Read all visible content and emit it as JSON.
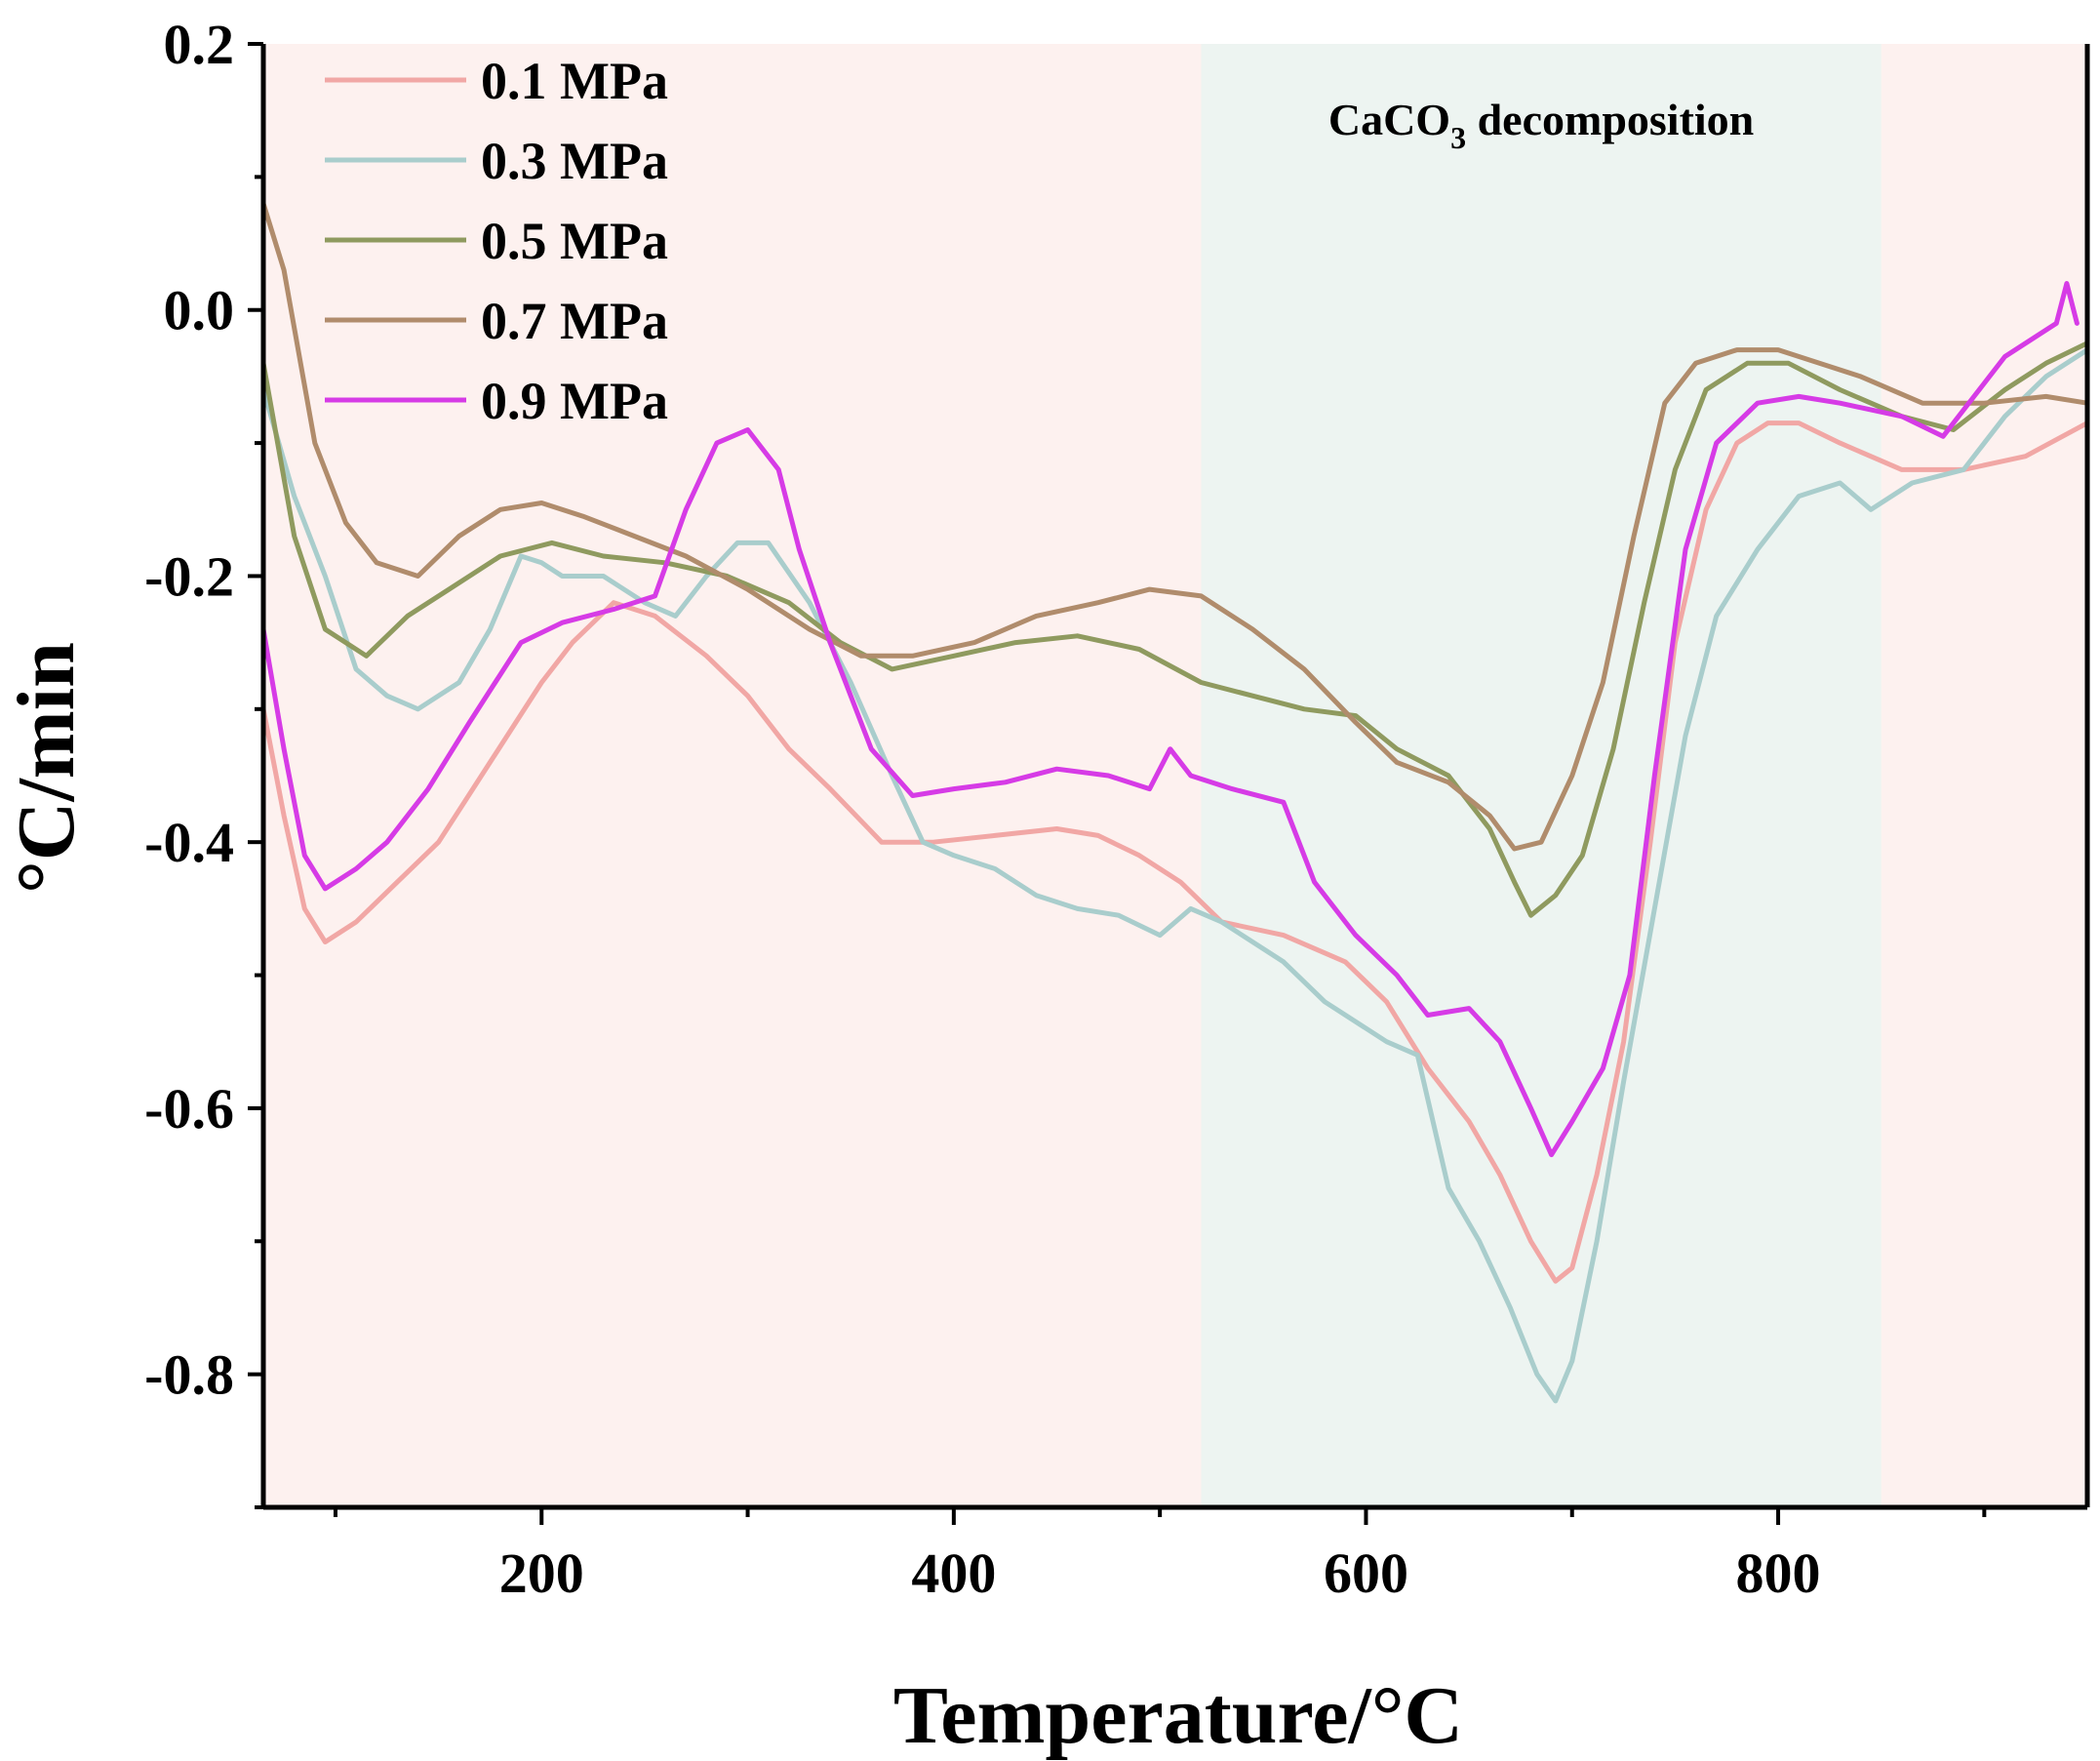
{
  "chart_data": {
    "type": "line",
    "xlabel": "Temperature/°C",
    "ylabel": "°C/min",
    "xlim": [
      65,
      950
    ],
    "ylim": [
      -0.9,
      0.2
    ],
    "xticks": [
      200,
      400,
      600,
      800
    ],
    "yticks": [
      0.2,
      0.0,
      -0.2,
      -0.4,
      -0.6,
      -0.8
    ],
    "ytick_labels": [
      "0.2",
      "0.0",
      "-0.2",
      "-0.4",
      "-0.6",
      "-0.8"
    ],
    "xtick_labels": [
      "200",
      "400",
      "600",
      "800"
    ],
    "legend_position": "top-left",
    "background_color": "#fdf1ef",
    "highlight_region": {
      "x_from": 520,
      "x_to": 850,
      "color": "#edf4f1",
      "label_main": "CaCO",
      "label_sub": "3",
      "label_tail": " decomposition"
    },
    "series": [
      {
        "name": "0.1 MPa",
        "color": "#f1a7a5",
        "points": [
          [
            65,
            -0.3
          ],
          [
            75,
            -0.38
          ],
          [
            85,
            -0.45
          ],
          [
            95,
            -0.475
          ],
          [
            110,
            -0.46
          ],
          [
            130,
            -0.43
          ],
          [
            150,
            -0.4
          ],
          [
            175,
            -0.34
          ],
          [
            200,
            -0.28
          ],
          [
            215,
            -0.25
          ],
          [
            235,
            -0.22
          ],
          [
            255,
            -0.23
          ],
          [
            280,
            -0.26
          ],
          [
            300,
            -0.29
          ],
          [
            320,
            -0.33
          ],
          [
            340,
            -0.36
          ],
          [
            365,
            -0.4
          ],
          [
            390,
            -0.4
          ],
          [
            420,
            -0.395
          ],
          [
            450,
            -0.39
          ],
          [
            470,
            -0.395
          ],
          [
            490,
            -0.41
          ],
          [
            510,
            -0.43
          ],
          [
            530,
            -0.46
          ],
          [
            560,
            -0.47
          ],
          [
            590,
            -0.49
          ],
          [
            610,
            -0.52
          ],
          [
            630,
            -0.57
          ],
          [
            650,
            -0.61
          ],
          [
            665,
            -0.65
          ],
          [
            680,
            -0.7
          ],
          [
            692,
            -0.73
          ],
          [
            700,
            -0.72
          ],
          [
            712,
            -0.65
          ],
          [
            725,
            -0.55
          ],
          [
            738,
            -0.4
          ],
          [
            750,
            -0.25
          ],
          [
            765,
            -0.15
          ],
          [
            780,
            -0.1
          ],
          [
            795,
            -0.085
          ],
          [
            810,
            -0.085
          ],
          [
            830,
            -0.1
          ],
          [
            860,
            -0.12
          ],
          [
            890,
            -0.12
          ],
          [
            920,
            -0.11
          ],
          [
            950,
            -0.085
          ]
        ]
      },
      {
        "name": "0.3 MPa",
        "color": "#a9cdcc",
        "points": [
          [
            65,
            -0.06
          ],
          [
            80,
            -0.14
          ],
          [
            95,
            -0.2
          ],
          [
            110,
            -0.27
          ],
          [
            125,
            -0.29
          ],
          [
            140,
            -0.3
          ],
          [
            160,
            -0.28
          ],
          [
            175,
            -0.24
          ],
          [
            190,
            -0.185
          ],
          [
            200,
            -0.19
          ],
          [
            210,
            -0.2
          ],
          [
            230,
            -0.2
          ],
          [
            250,
            -0.22
          ],
          [
            265,
            -0.23
          ],
          [
            280,
            -0.2
          ],
          [
            295,
            -0.175
          ],
          [
            310,
            -0.175
          ],
          [
            330,
            -0.22
          ],
          [
            350,
            -0.28
          ],
          [
            370,
            -0.35
          ],
          [
            385,
            -0.4
          ],
          [
            400,
            -0.41
          ],
          [
            420,
            -0.42
          ],
          [
            440,
            -0.44
          ],
          [
            460,
            -0.45
          ],
          [
            480,
            -0.455
          ],
          [
            500,
            -0.47
          ],
          [
            515,
            -0.45
          ],
          [
            530,
            -0.46
          ],
          [
            560,
            -0.49
          ],
          [
            580,
            -0.52
          ],
          [
            610,
            -0.55
          ],
          [
            625,
            -0.56
          ],
          [
            640,
            -0.66
          ],
          [
            655,
            -0.7
          ],
          [
            670,
            -0.75
          ],
          [
            683,
            -0.8
          ],
          [
            692,
            -0.82
          ],
          [
            700,
            -0.79
          ],
          [
            712,
            -0.7
          ],
          [
            725,
            -0.58
          ],
          [
            740,
            -0.45
          ],
          [
            755,
            -0.32
          ],
          [
            770,
            -0.23
          ],
          [
            790,
            -0.18
          ],
          [
            810,
            -0.14
          ],
          [
            830,
            -0.13
          ],
          [
            845,
            -0.15
          ],
          [
            865,
            -0.13
          ],
          [
            890,
            -0.12
          ],
          [
            910,
            -0.08
          ],
          [
            930,
            -0.05
          ],
          [
            950,
            -0.03
          ]
        ]
      },
      {
        "name": "0.5 MPa",
        "color": "#8f9a5f",
        "points": [
          [
            65,
            -0.04
          ],
          [
            80,
            -0.17
          ],
          [
            95,
            -0.24
          ],
          [
            115,
            -0.26
          ],
          [
            135,
            -0.23
          ],
          [
            155,
            -0.21
          ],
          [
            180,
            -0.185
          ],
          [
            205,
            -0.175
          ],
          [
            230,
            -0.185
          ],
          [
            260,
            -0.19
          ],
          [
            290,
            -0.2
          ],
          [
            320,
            -0.22
          ],
          [
            345,
            -0.25
          ],
          [
            370,
            -0.27
          ],
          [
            400,
            -0.26
          ],
          [
            430,
            -0.25
          ],
          [
            460,
            -0.245
          ],
          [
            490,
            -0.255
          ],
          [
            520,
            -0.28
          ],
          [
            545,
            -0.29
          ],
          [
            570,
            -0.3
          ],
          [
            595,
            -0.305
          ],
          [
            615,
            -0.33
          ],
          [
            640,
            -0.35
          ],
          [
            660,
            -0.39
          ],
          [
            672,
            -0.43
          ],
          [
            680,
            -0.455
          ],
          [
            692,
            -0.44
          ],
          [
            705,
            -0.41
          ],
          [
            720,
            -0.33
          ],
          [
            735,
            -0.22
          ],
          [
            750,
            -0.12
          ],
          [
            765,
            -0.06
          ],
          [
            785,
            -0.04
          ],
          [
            805,
            -0.04
          ],
          [
            830,
            -0.06
          ],
          [
            860,
            -0.08
          ],
          [
            885,
            -0.09
          ],
          [
            910,
            -0.06
          ],
          [
            930,
            -0.04
          ],
          [
            950,
            -0.025
          ]
        ]
      },
      {
        "name": "0.7 MPa",
        "color": "#b08c6c",
        "points": [
          [
            65,
            0.08
          ],
          [
            75,
            0.03
          ],
          [
            90,
            -0.1
          ],
          [
            105,
            -0.16
          ],
          [
            120,
            -0.19
          ],
          [
            140,
            -0.2
          ],
          [
            160,
            -0.17
          ],
          [
            180,
            -0.15
          ],
          [
            200,
            -0.145
          ],
          [
            220,
            -0.155
          ],
          [
            245,
            -0.17
          ],
          [
            270,
            -0.185
          ],
          [
            300,
            -0.21
          ],
          [
            330,
            -0.24
          ],
          [
            355,
            -0.26
          ],
          [
            380,
            -0.26
          ],
          [
            410,
            -0.25
          ],
          [
            440,
            -0.23
          ],
          [
            470,
            -0.22
          ],
          [
            495,
            -0.21
          ],
          [
            520,
            -0.215
          ],
          [
            545,
            -0.24
          ],
          [
            570,
            -0.27
          ],
          [
            595,
            -0.31
          ],
          [
            615,
            -0.34
          ],
          [
            640,
            -0.355
          ],
          [
            660,
            -0.38
          ],
          [
            672,
            -0.405
          ],
          [
            685,
            -0.4
          ],
          [
            700,
            -0.35
          ],
          [
            715,
            -0.28
          ],
          [
            730,
            -0.17
          ],
          [
            745,
            -0.07
          ],
          [
            760,
            -0.04
          ],
          [
            780,
            -0.03
          ],
          [
            800,
            -0.03
          ],
          [
            820,
            -0.04
          ],
          [
            840,
            -0.05
          ],
          [
            870,
            -0.07
          ],
          [
            900,
            -0.07
          ],
          [
            930,
            -0.065
          ],
          [
            950,
            -0.07
          ]
        ]
      },
      {
        "name": "0.9 MPa",
        "color": "#d63be6",
        "points": [
          [
            65,
            -0.24
          ],
          [
            75,
            -0.33
          ],
          [
            85,
            -0.41
          ],
          [
            95,
            -0.435
          ],
          [
            110,
            -0.42
          ],
          [
            125,
            -0.4
          ],
          [
            145,
            -0.36
          ],
          [
            165,
            -0.31
          ],
          [
            190,
            -0.25
          ],
          [
            210,
            -0.235
          ],
          [
            235,
            -0.225
          ],
          [
            255,
            -0.215
          ],
          [
            270,
            -0.15
          ],
          [
            285,
            -0.1
          ],
          [
            300,
            -0.09
          ],
          [
            315,
            -0.12
          ],
          [
            325,
            -0.18
          ],
          [
            340,
            -0.25
          ],
          [
            360,
            -0.33
          ],
          [
            380,
            -0.365
          ],
          [
            400,
            -0.36
          ],
          [
            425,
            -0.355
          ],
          [
            450,
            -0.345
          ],
          [
            475,
            -0.35
          ],
          [
            495,
            -0.36
          ],
          [
            505,
            -0.33
          ],
          [
            515,
            -0.35
          ],
          [
            535,
            -0.36
          ],
          [
            560,
            -0.37
          ],
          [
            575,
            -0.43
          ],
          [
            595,
            -0.47
          ],
          [
            615,
            -0.5
          ],
          [
            630,
            -0.53
          ],
          [
            650,
            -0.525
          ],
          [
            665,
            -0.55
          ],
          [
            680,
            -0.6
          ],
          [
            690,
            -0.635
          ],
          [
            700,
            -0.61
          ],
          [
            715,
            -0.57
          ],
          [
            728,
            -0.5
          ],
          [
            740,
            -0.35
          ],
          [
            755,
            -0.18
          ],
          [
            770,
            -0.1
          ],
          [
            790,
            -0.07
          ],
          [
            810,
            -0.065
          ],
          [
            830,
            -0.07
          ],
          [
            860,
            -0.08
          ],
          [
            880,
            -0.095
          ],
          [
            895,
            -0.065
          ],
          [
            910,
            -0.035
          ],
          [
            925,
            -0.02
          ],
          [
            935,
            -0.01
          ],
          [
            940,
            0.02
          ],
          [
            945,
            -0.01
          ]
        ]
      }
    ]
  }
}
